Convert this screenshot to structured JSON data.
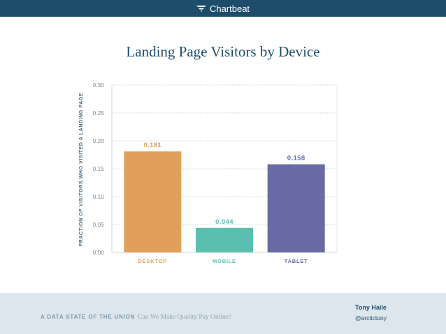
{
  "header": {
    "brand": "Chartbeat",
    "logo_icon": "chartbeat-logo-icon",
    "bg_color": "#1d4d6b"
  },
  "chart_data": {
    "type": "bar",
    "title": "Landing Page Visitors by Device",
    "xlabel": "",
    "ylabel": "FRACTION OF VISITORS WHO VISITED A LANDING PAGE",
    "categories": [
      "DESKTOP",
      "MOBILE",
      "TABLET"
    ],
    "values": [
      0.181,
      0.044,
      0.158
    ],
    "data_labels": [
      "0.181",
      "0.044",
      "0.158"
    ],
    "colors": [
      "#e0a05a",
      "#5bbfb0",
      "#676aa3"
    ],
    "yticks": [
      "0.00",
      "0.05",
      "0.10",
      "0.15",
      "0.20",
      "0.25",
      "0.30"
    ],
    "ylim": [
      0,
      0.3
    ],
    "grid": true,
    "legend": "none"
  },
  "footer": {
    "deck_caps": "A DATA STATE OF THE UNION",
    "deck_subtitle": "Can We Make Quality Pay Online?",
    "author": "Tony Haile",
    "handle": "@arctictony"
  }
}
